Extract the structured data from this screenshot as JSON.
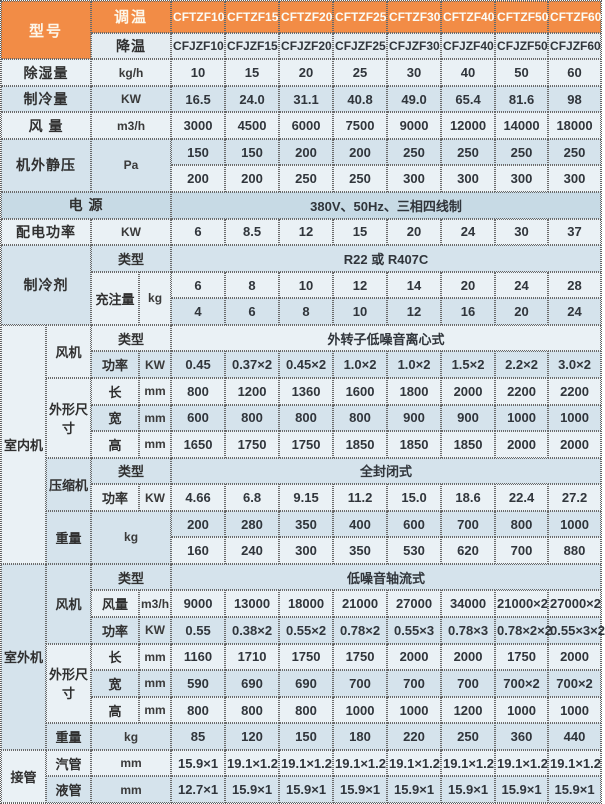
{
  "palette": {
    "header_orange": "#F28C46",
    "row_light": "#EAF1F5",
    "row_blue": "#D5E3EC",
    "row_power": "#C7DAE5",
    "border_dotted": "#6a6a6a",
    "text_dark": "#30353b",
    "header_text": "#FDF7EA"
  },
  "table": {
    "rows": [
      {
        "bg": "H",
        "cells": [
          {
            "t": "型号",
            "cs": 2,
            "rs": 2,
            "cls": "org",
            "n": "model-header-label"
          },
          {
            "t": "调温",
            "cs": 2,
            "cls": "org",
            "n": "temp-adjust-mode-label"
          },
          {
            "t": "CFTZF10",
            "cls": "mdl",
            "n": "model-column-header"
          },
          {
            "t": "CFTZF15",
            "cls": "mdl",
            "n": "model-column-header"
          },
          {
            "t": "CFTZF20",
            "cls": "mdl",
            "n": "model-column-header"
          },
          {
            "t": "CFTZF25",
            "cls": "mdl",
            "n": "model-column-header"
          },
          {
            "t": "CFTZF30",
            "cls": "mdl",
            "n": "model-column-header"
          },
          {
            "t": "CFTZF40",
            "cls": "mdl",
            "n": "model-column-header"
          },
          {
            "t": "CFTZF50",
            "cls": "mdl",
            "n": "model-column-header"
          },
          {
            "t": "CFTZF60",
            "cls": "mdl",
            "n": "model-column-header"
          }
        ]
      },
      {
        "bg": "S",
        "cells": [
          {
            "t": "降温",
            "cs": 2,
            "cls": "lbl",
            "n": "cooling-mode-label"
          },
          {
            "t": "CFJZF10",
            "cls": "mdl2",
            "n": "model-column-header"
          },
          {
            "t": "CFJZF15",
            "cls": "mdl2",
            "n": "model-column-header"
          },
          {
            "t": "CFJZF20",
            "cls": "mdl2",
            "n": "model-column-header"
          },
          {
            "t": "CFJZF25",
            "cls": "mdl2",
            "n": "model-column-header"
          },
          {
            "t": "CFJZF30",
            "cls": "mdl2",
            "n": "model-column-header"
          },
          {
            "t": "CFJZF40",
            "cls": "mdl2",
            "n": "model-column-header"
          },
          {
            "t": "CFJZF50",
            "cls": "mdl2",
            "n": "model-column-header"
          },
          {
            "t": "CFJZF60",
            "cls": "mdl2",
            "n": "model-column-header"
          }
        ]
      },
      {
        "bg": "L",
        "cells": [
          {
            "t": "除湿量",
            "cs": 2,
            "cls": "lbl",
            "n": "dehumidification-capacity-label"
          },
          {
            "t": "kg/h",
            "cs": 2,
            "cls": "unit",
            "n": "unit-cell"
          }
        ],
        "vals": [
          "10",
          "15",
          "20",
          "25",
          "30",
          "40",
          "50",
          "60"
        ]
      },
      {
        "bg": "B",
        "cells": [
          {
            "t": "制冷量",
            "cs": 2,
            "cls": "lbl",
            "n": "cooling-capacity-label"
          },
          {
            "t": "KW",
            "cs": 2,
            "cls": "unit",
            "n": "unit-cell"
          }
        ],
        "vals": [
          "16.5",
          "24.0",
          "31.1",
          "40.8",
          "49.0",
          "65.4",
          "81.6",
          "98"
        ]
      },
      {
        "bg": "L",
        "cells": [
          {
            "t": "风 量",
            "cs": 2,
            "cls": "lbl",
            "n": "air-volume-label"
          },
          {
            "t": "m3/h",
            "cs": 2,
            "cls": "unit",
            "n": "unit-cell"
          }
        ],
        "vals": [
          "3000",
          "4500",
          "6000",
          "7500",
          "9000",
          "12000",
          "14000",
          "18000"
        ]
      },
      {
        "bg": "B",
        "cells": [
          {
            "t": "机外静压",
            "cs": 2,
            "rs": 2,
            "cls": "lbl",
            "n": "external-static-pressure-label"
          },
          {
            "t": "Pa",
            "cs": 2,
            "rs": 2,
            "cls": "unit",
            "n": "unit-cell"
          }
        ],
        "vals": [
          "150",
          "150",
          "200",
          "200",
          "250",
          "250",
          "250",
          "250"
        ]
      },
      {
        "bg": "L",
        "vals": [
          "200",
          "200",
          "250",
          "250",
          "300",
          "300",
          "300",
          "300"
        ]
      },
      {
        "bg": "D",
        "cells": [
          {
            "t": "电 源",
            "cs": 4,
            "cls": "lbl",
            "n": "power-supply-label"
          },
          {
            "t": "380V、50Hz、三相四线制",
            "cs": 8,
            "cls": "val",
            "n": "power-supply-value"
          }
        ]
      },
      {
        "bg": "L",
        "cells": [
          {
            "t": "配电功率",
            "cs": 2,
            "cls": "lbl",
            "n": "power-consumption-label"
          },
          {
            "t": "KW",
            "cs": 2,
            "cls": "unit",
            "n": "unit-cell"
          }
        ],
        "vals": [
          "6",
          "8.5",
          "12",
          "15",
          "20",
          "24",
          "30",
          "37"
        ]
      },
      {
        "bg": "B",
        "cells": [
          {
            "t": "制冷剂",
            "cs": 2,
            "rs": 3,
            "cls": "lbl",
            "n": "refrigerant-label"
          },
          {
            "t": "类型",
            "cs": 2,
            "cls": "lbl-sm",
            "n": "type-label"
          },
          {
            "t": "R22 或 R407C",
            "cs": 8,
            "cls": "val",
            "n": "refrigerant-type-value"
          }
        ]
      },
      {
        "bg": "L",
        "cells": [
          {
            "t": "充注量",
            "rs": 2,
            "cls": "lbl-sm",
            "n": "charge-amount-label"
          },
          {
            "t": "kg",
            "rs": 2,
            "cls": "unit",
            "n": "unit-cell"
          }
        ],
        "vals": [
          "6",
          "8",
          "10",
          "12",
          "14",
          "20",
          "24",
          "28"
        ]
      },
      {
        "bg": "B",
        "vals": [
          "4",
          "6",
          "8",
          "10",
          "12",
          "16",
          "20",
          "24"
        ]
      },
      {
        "bg": "L",
        "cells": [
          {
            "t": "室内机",
            "rs": 9,
            "cls": "lbl-sm",
            "n": "indoor-unit-label"
          },
          {
            "t": "风机",
            "rs": 2,
            "cls": "lbl-sm",
            "n": "fan-label"
          },
          {
            "t": "类型",
            "cs": 2,
            "cls": "lbl-sm",
            "n": "type-label"
          },
          {
            "t": "外转子低噪音离心式",
            "cs": 8,
            "cls": "val",
            "n": "indoor-fan-type-value"
          }
        ]
      },
      {
        "bg": "B",
        "cells": [
          {
            "t": "功率",
            "cls": "lbl-sm",
            "n": "power-label"
          },
          {
            "t": "KW",
            "cls": "unit",
            "n": "unit-cell"
          }
        ],
        "vals": [
          "0.45",
          "0.37×2",
          "0.45×2",
          "1.0×2",
          "1.0×2",
          "1.5×2",
          "2.2×2",
          "3.0×2"
        ]
      },
      {
        "bg": "L",
        "cells": [
          {
            "t": "外形尺寸",
            "rs": 3,
            "cls": "lbl-sm",
            "n": "dimensions-label"
          },
          {
            "t": "长",
            "cls": "lbl-sm",
            "n": "length-label"
          },
          {
            "t": "mm",
            "cls": "unit",
            "n": "unit-cell"
          }
        ],
        "vals": [
          "800",
          "1200",
          "1360",
          "1600",
          "1800",
          "2000",
          "2200",
          "2200"
        ]
      },
      {
        "bg": "B",
        "cells": [
          {
            "t": "宽",
            "cls": "lbl-sm",
            "n": "width-label"
          },
          {
            "t": "mm",
            "cls": "unit",
            "n": "unit-cell"
          }
        ],
        "vals": [
          "600",
          "800",
          "800",
          "800",
          "900",
          "900",
          "1000",
          "1000"
        ]
      },
      {
        "bg": "L",
        "cells": [
          {
            "t": "高",
            "cls": "lbl-sm",
            "n": "height-label"
          },
          {
            "t": "mm",
            "cls": "unit",
            "n": "unit-cell"
          }
        ],
        "vals": [
          "1650",
          "1750",
          "1750",
          "1850",
          "1850",
          "1850",
          "2000",
          "2000"
        ]
      },
      {
        "bg": "B",
        "cells": [
          {
            "t": "压缩机",
            "rs": 2,
            "cls": "lbl-sm",
            "n": "compressor-label"
          },
          {
            "t": "类型",
            "cs": 2,
            "cls": "lbl-sm",
            "n": "type-label"
          },
          {
            "t": "全封闭式",
            "cs": 8,
            "cls": "val",
            "n": "compressor-type-value"
          }
        ]
      },
      {
        "bg": "L",
        "cells": [
          {
            "t": "功率",
            "cls": "lbl-sm",
            "n": "power-label"
          },
          {
            "t": "KW",
            "cls": "unit",
            "n": "unit-cell"
          }
        ],
        "vals": [
          "4.66",
          "6.8",
          "9.15",
          "11.2",
          "15.0",
          "18.6",
          "22.4",
          "27.2"
        ]
      },
      {
        "bg": "B",
        "cells": [
          {
            "t": "重量",
            "rs": 2,
            "cls": "lbl-sm",
            "n": "weight-label"
          },
          {
            "t": "kg",
            "cs": 2,
            "rs": 2,
            "cls": "unit",
            "n": "unit-cell"
          }
        ],
        "vals": [
          "200",
          "280",
          "350",
          "400",
          "600",
          "700",
          "800",
          "1000"
        ]
      },
      {
        "bg": "L",
        "vals": [
          "160",
          "240",
          "300",
          "350",
          "530",
          "620",
          "700",
          "880"
        ]
      },
      {
        "bg": "B",
        "cells": [
          {
            "t": "室外机",
            "rs": 7,
            "cls": "lbl-sm",
            "n": "outdoor-unit-label"
          },
          {
            "t": "风机",
            "rs": 3,
            "cls": "lbl-sm",
            "n": "fan-label"
          },
          {
            "t": "类型",
            "cs": 2,
            "cls": "lbl-sm",
            "n": "type-label"
          },
          {
            "t": "低噪音轴流式",
            "cs": 8,
            "cls": "val",
            "n": "outdoor-fan-type-value"
          }
        ]
      },
      {
        "bg": "L",
        "cells": [
          {
            "t": "风量",
            "cls": "lbl-sm",
            "n": "air-volume-label"
          },
          {
            "t": "m3/h",
            "cls": "unit",
            "n": "unit-cell"
          }
        ],
        "vals": [
          "9000",
          "13000",
          "18000",
          "21000",
          "27000",
          "34000",
          "21000×2",
          "27000×2"
        ]
      },
      {
        "bg": "B",
        "cells": [
          {
            "t": "功率",
            "cls": "lbl-sm",
            "n": "power-label"
          },
          {
            "t": "KW",
            "cls": "unit",
            "n": "unit-cell"
          }
        ],
        "vals": [
          "0.55",
          "0.38×2",
          "0.55×2",
          "0.78×2",
          "0.55×3",
          "0.78×3",
          "0.78×2×2",
          "0.55×3×2"
        ]
      },
      {
        "bg": "L",
        "cells": [
          {
            "t": "外形尺寸",
            "rs": 3,
            "cls": "lbl-sm",
            "n": "dimensions-label"
          },
          {
            "t": "长",
            "cls": "lbl-sm",
            "n": "length-label"
          },
          {
            "t": "mm",
            "cls": "unit",
            "n": "unit-cell"
          }
        ],
        "vals": [
          "1160",
          "1710",
          "1750",
          "1750",
          "2000",
          "2000",
          "1750",
          "2000"
        ]
      },
      {
        "bg": "B",
        "cells": [
          {
            "t": "宽",
            "cls": "lbl-sm",
            "n": "width-label"
          },
          {
            "t": "mm",
            "cls": "unit",
            "n": "unit-cell"
          }
        ],
        "vals": [
          "590",
          "690",
          "690",
          "700",
          "700",
          "700",
          "700×2",
          "700×2"
        ]
      },
      {
        "bg": "L",
        "cells": [
          {
            "t": "高",
            "cls": "lbl-sm",
            "n": "height-label"
          },
          {
            "t": "mm",
            "cls": "unit",
            "n": "unit-cell"
          }
        ],
        "vals": [
          "800",
          "800",
          "800",
          "1000",
          "1000",
          "1200",
          "1000",
          "1000"
        ]
      },
      {
        "bg": "B",
        "cells": [
          {
            "t": "重量",
            "cls": "lbl-sm",
            "n": "weight-label"
          },
          {
            "t": "kg",
            "cs": 2,
            "cls": "unit",
            "n": "unit-cell"
          }
        ],
        "vals": [
          "85",
          "120",
          "150",
          "180",
          "220",
          "250",
          "360",
          "440"
        ]
      },
      {
        "bg": "L",
        "cells": [
          {
            "t": "接管",
            "rs": 2,
            "cls": "lbl-sm",
            "n": "pipe-connection-label"
          },
          {
            "t": "汽管",
            "cls": "lbl-sm",
            "n": "gas-pipe-label"
          },
          {
            "t": "mm",
            "cs": 2,
            "cls": "unit",
            "n": "unit-cell"
          }
        ],
        "vals": [
          "15.9×1",
          "19.1×1.2",
          "19.1×1.2",
          "19.1×1.2",
          "19.1×1.2",
          "19.1×1.2",
          "19.1×1.2",
          "19.1×1.2"
        ]
      },
      {
        "bg": "B",
        "cells": [
          {
            "t": "液管",
            "cls": "lbl-sm",
            "n": "liquid-pipe-label"
          },
          {
            "t": "mm",
            "cs": 2,
            "cls": "unit",
            "n": "unit-cell"
          }
        ],
        "vals": [
          "12.7×1",
          "15.9×1",
          "15.9×1",
          "15.9×1",
          "15.9×1",
          "15.9×1",
          "15.9×1",
          "15.9×1"
        ]
      }
    ]
  }
}
